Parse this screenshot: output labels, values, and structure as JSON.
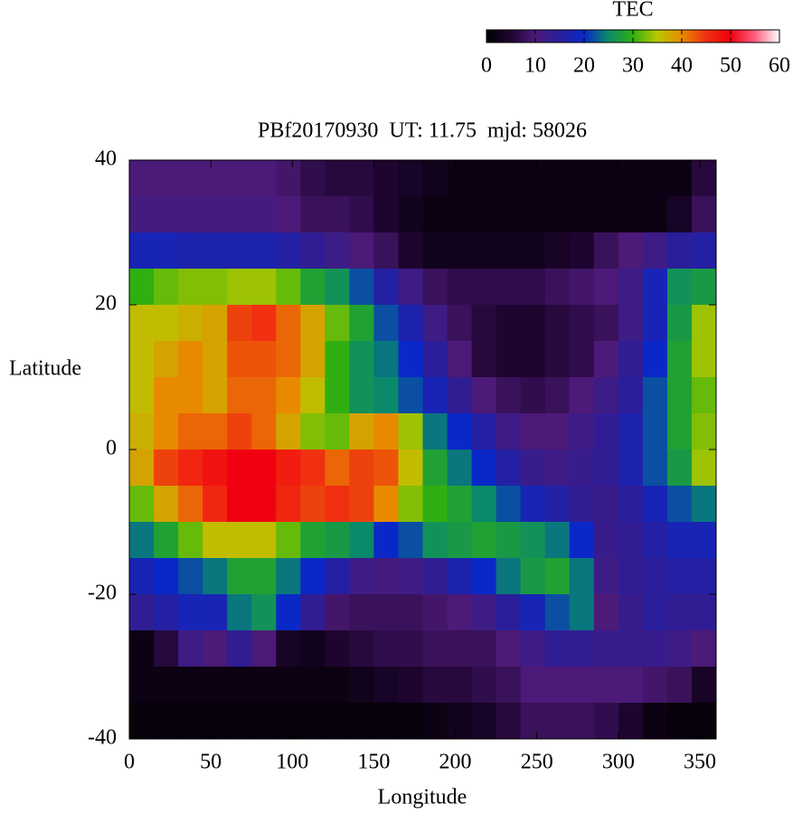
{
  "chart_data": {
    "type": "heatmap",
    "title": "PBf20170930  UT: 11.75  mjd: 58026",
    "x_label": "Longitude",
    "y_label": "Latitude",
    "colorbar_label": "TEC",
    "xlim": [
      0,
      360
    ],
    "xticks": [
      0,
      50,
      100,
      150,
      200,
      250,
      300,
      350
    ],
    "ylim": [
      -40,
      40
    ],
    "yticks": [
      -40,
      -20,
      0,
      20,
      40
    ],
    "zlim": [
      0,
      60
    ],
    "zticks": [
      0,
      10,
      20,
      30,
      40,
      50,
      60
    ],
    "colormap": [
      "#000000",
      "#1e0530",
      "#4c1a78",
      "#2a1e9a",
      "#0a28c8",
      "#0a8a6a",
      "#30b010",
      "#b8c800",
      "#e88a00",
      "#f03010",
      "#f00010",
      "#ff6080",
      "#ffffff"
    ],
    "x": [
      7.5,
      22.5,
      37.5,
      52.5,
      67.5,
      82.5,
      97.5,
      112.5,
      127.5,
      142.5,
      157.5,
      172.5,
      187.5,
      202.5,
      217.5,
      232.5,
      247.5,
      262.5,
      277.5,
      292.5,
      307.5,
      322.5,
      337.5,
      352.5
    ],
    "y": [
      37.5,
      32.5,
      27.5,
      22.5,
      17.5,
      12.5,
      7.5,
      2.5,
      -2.5,
      -7.5,
      -12.5,
      -17.5,
      -22.5,
      -27.5,
      -32.5,
      -37.5
    ],
    "z": [
      [
        10,
        10,
        10,
        10,
        10,
        10,
        9,
        7,
        6,
        6,
        5,
        4,
        3,
        2,
        2,
        2,
        2,
        2,
        2,
        2,
        2,
        2,
        2,
        6
      ],
      [
        11,
        11,
        11,
        11,
        11,
        11,
        10,
        8,
        8,
        7,
        5,
        3,
        2,
        2,
        2,
        2,
        2,
        2,
        2,
        2,
        2,
        2,
        4,
        8
      ],
      [
        18,
        18,
        17,
        17,
        17,
        17,
        16,
        14,
        12,
        10,
        8,
        5,
        3,
        3,
        3,
        3,
        3,
        4,
        5,
        8,
        10,
        12,
        15,
        16
      ],
      [
        30,
        32,
        33,
        33,
        34,
        34,
        32,
        28,
        26,
        22,
        16,
        12,
        8,
        7,
        7,
        7,
        7,
        8,
        9,
        10,
        12,
        18,
        26,
        27
      ],
      [
        36,
        36,
        37,
        38,
        44,
        45,
        42,
        38,
        32,
        28,
        22,
        17,
        12,
        8,
        6,
        5,
        5,
        6,
        7,
        8,
        12,
        18,
        27,
        34
      ],
      [
        36,
        38,
        40,
        38,
        43,
        43,
        42,
        38,
        30,
        26,
        24,
        20,
        15,
        10,
        6,
        5,
        5,
        6,
        7,
        10,
        14,
        20,
        28,
        34
      ],
      [
        36,
        40,
        40,
        38,
        42,
        42,
        40,
        36,
        30,
        26,
        25,
        22,
        18,
        14,
        10,
        8,
        7,
        8,
        10,
        12,
        15,
        22,
        28,
        32
      ],
      [
        37,
        40,
        42,
        42,
        44,
        42,
        38,
        33,
        32,
        38,
        40,
        34,
        24,
        20,
        16,
        12,
        10,
        10,
        12,
        14,
        17,
        22,
        28,
        33
      ],
      [
        38,
        44,
        46,
        48,
        50,
        50,
        47,
        45,
        42,
        44,
        43,
        36,
        28,
        24,
        20,
        16,
        13,
        12,
        13,
        14,
        17,
        22,
        27,
        34
      ],
      [
        32,
        38,
        42,
        46,
        50,
        50,
        46,
        44,
        45,
        44,
        40,
        33,
        30,
        28,
        25,
        22,
        18,
        16,
        14,
        13,
        15,
        18,
        22,
        24
      ],
      [
        24,
        28,
        32,
        36,
        36,
        36,
        32,
        28,
        27,
        25,
        20,
        22,
        26,
        27,
        28,
        27,
        26,
        24,
        20,
        13,
        14,
        16,
        18,
        18
      ],
      [
        18,
        20,
        22,
        24,
        28,
        28,
        24,
        20,
        16,
        12,
        11,
        12,
        14,
        17,
        20,
        24,
        27,
        28,
        24,
        12,
        14,
        15,
        16,
        16
      ],
      [
        14,
        16,
        18,
        18,
        24,
        26,
        20,
        14,
        9,
        8,
        8,
        8,
        9,
        10,
        12,
        15,
        18,
        22,
        24,
        10,
        13,
        15,
        14,
        14
      ],
      [
        2,
        6,
        12,
        10,
        14,
        10,
        4,
        3,
        5,
        6,
        7,
        7,
        8,
        8,
        8,
        10,
        12,
        14,
        14,
        13,
        13,
        13,
        12,
        10
      ],
      [
        2,
        2,
        2,
        2,
        2,
        2,
        2,
        2,
        2,
        3,
        4,
        5,
        6,
        6,
        7,
        8,
        10,
        10,
        10,
        10,
        10,
        9,
        8,
        4
      ],
      [
        1,
        1,
        1,
        1,
        1,
        1,
        1,
        1,
        1,
        1,
        1,
        1,
        2,
        3,
        4,
        6,
        8,
        8,
        8,
        7,
        5,
        2,
        1,
        1
      ]
    ]
  }
}
